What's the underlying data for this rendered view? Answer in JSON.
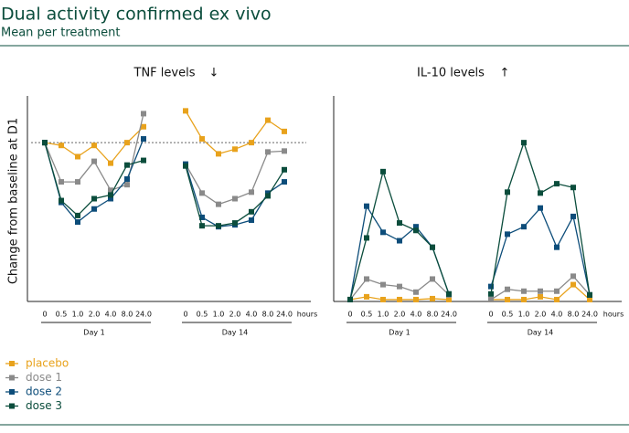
{
  "title": "Dual activity confirmed ex vivo",
  "subtitle": "Mean per treatment",
  "y_axis_label": "Change from baseline at D1",
  "legend": [
    {
      "name": "placebo",
      "color": "#e8a21c"
    },
    {
      "name": "dose 1",
      "color": "#8a8a8a"
    },
    {
      "name": "dose 2",
      "color": "#0d4d7a"
    },
    {
      "name": "dose 3",
      "color": "#0b4d3c"
    }
  ],
  "chart_data": [
    {
      "type": "line",
      "title": "TNF levels",
      "arrow": "↓",
      "x_unit": "hours",
      "ylim": [
        0,
        110
      ],
      "baseline": 85,
      "days": [
        {
          "label": "Day 1",
          "categories": [
            "0",
            "0.5",
            "1.0",
            "2.0",
            "4.0",
            "8.0",
            "24.0"
          ],
          "series": [
            {
              "values": [
                85,
                83.5,
                77.5,
                83.5,
                74,
                85,
                93.5
              ]
            },
            {
              "values": [
                85,
                64,
                64,
                75,
                59.5,
                62.5,
                100.5
              ]
            },
            {
              "values": [
                85,
                53,
                42.5,
                49.5,
                55,
                65.5,
                87
              ]
            },
            {
              "values": [
                85,
                54,
                46,
                55,
                57,
                73,
                75.5
              ]
            }
          ]
        },
        {
          "label": "Day 14",
          "categories": [
            "0",
            "0.5",
            "1.0",
            "2.0",
            "4.0",
            "8.0",
            "24.0"
          ],
          "series": [
            {
              "values": [
                102,
                87,
                79,
                81.5,
                85,
                97,
                91
              ]
            },
            {
              "values": [
                73.5,
                58,
                52,
                55,
                58.5,
                80,
                80.5
              ]
            },
            {
              "values": [
                73.5,
                45,
                40,
                41,
                43.5,
                58,
                64
              ]
            },
            {
              "values": [
                72.5,
                40.5,
                40.5,
                42,
                48,
                56.5,
                70.5
              ]
            }
          ]
        }
      ]
    },
    {
      "type": "line",
      "title": "IL-10 levels",
      "arrow": "↑",
      "x_unit": "hours",
      "ylim": [
        0,
        110
      ],
      "days": [
        {
          "label": "Day 1",
          "categories": [
            "0",
            "0.5",
            "1.0",
            "2.0",
            "4.0",
            "8.0",
            "24.0"
          ],
          "series": [
            {
              "values": [
                1,
                2.5,
                1,
                1,
                1,
                1.5,
                1
              ]
            },
            {
              "values": [
                1,
                12,
                9,
                8,
                5,
                12,
                3.5
              ]
            },
            {
              "values": [
                1,
                51,
                37,
                32.5,
                40,
                29,
                4
              ]
            },
            {
              "values": [
                1,
                34,
                69.5,
                42,
                38,
                29,
                4
              ]
            }
          ]
        },
        {
          "label": "Day 14",
          "categories": [
            "0",
            "0.5",
            "1.0",
            "2.0",
            "4.0",
            "8.0",
            "24.0"
          ],
          "series": [
            {
              "values": [
                1,
                1,
                1,
                2.5,
                1,
                9,
                1
              ]
            },
            {
              "values": [
                1,
                6.5,
                5.5,
                5.5,
                5.5,
                13.5,
                3.5
              ]
            },
            {
              "values": [
                8,
                36,
                40,
                50,
                29,
                45.5,
                3.5
              ]
            },
            {
              "values": [
                4,
                58.5,
                85,
                58,
                63,
                61,
                3.5
              ]
            }
          ]
        }
      ]
    }
  ]
}
